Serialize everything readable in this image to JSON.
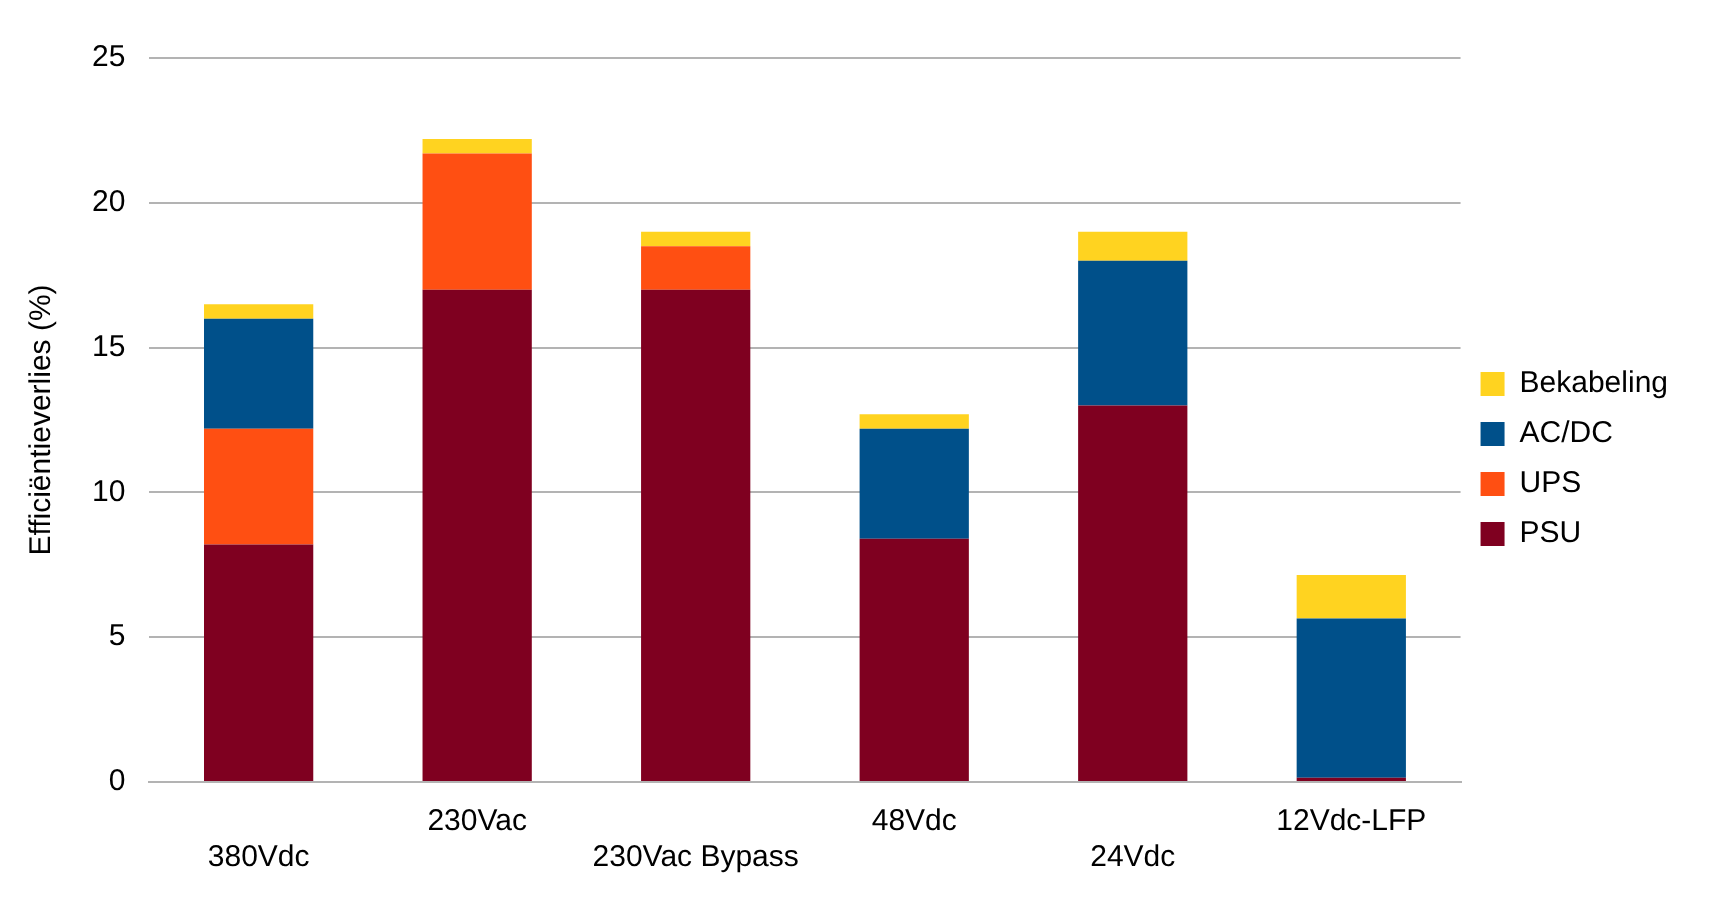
{
  "chart_data": {
    "type": "bar",
    "stacked": true,
    "ylabel": "Efficiëntieverlies (%)",
    "categories": [
      "380Vdc",
      "230Vac",
      "230Vac Bypass",
      "48Vdc",
      "24Vdc",
      "12Vdc-LFP"
    ],
    "series": [
      {
        "name": "PSU",
        "color": "#7f0020",
        "values": [
          8.2,
          17,
          17,
          8.4,
          13,
          0.15
        ]
      },
      {
        "name": "UPS",
        "color": "#ff4f12",
        "values": [
          4.0,
          4.7,
          1.5,
          null,
          null,
          null
        ]
      },
      {
        "name": "AC/DC",
        "color": "#00508a",
        "values": [
          3.8,
          null,
          null,
          3.8,
          5,
          5.5
        ]
      },
      {
        "name": "Bekabeling",
        "color": "#ffd320",
        "values": [
          0.5,
          0.5,
          0.5,
          0.5,
          1,
          1.5
        ]
      }
    ],
    "ylim": [
      0,
      25
    ],
    "yticks": [
      0,
      5,
      10,
      15,
      20,
      25
    ],
    "grid": "y",
    "legend": "right"
  }
}
